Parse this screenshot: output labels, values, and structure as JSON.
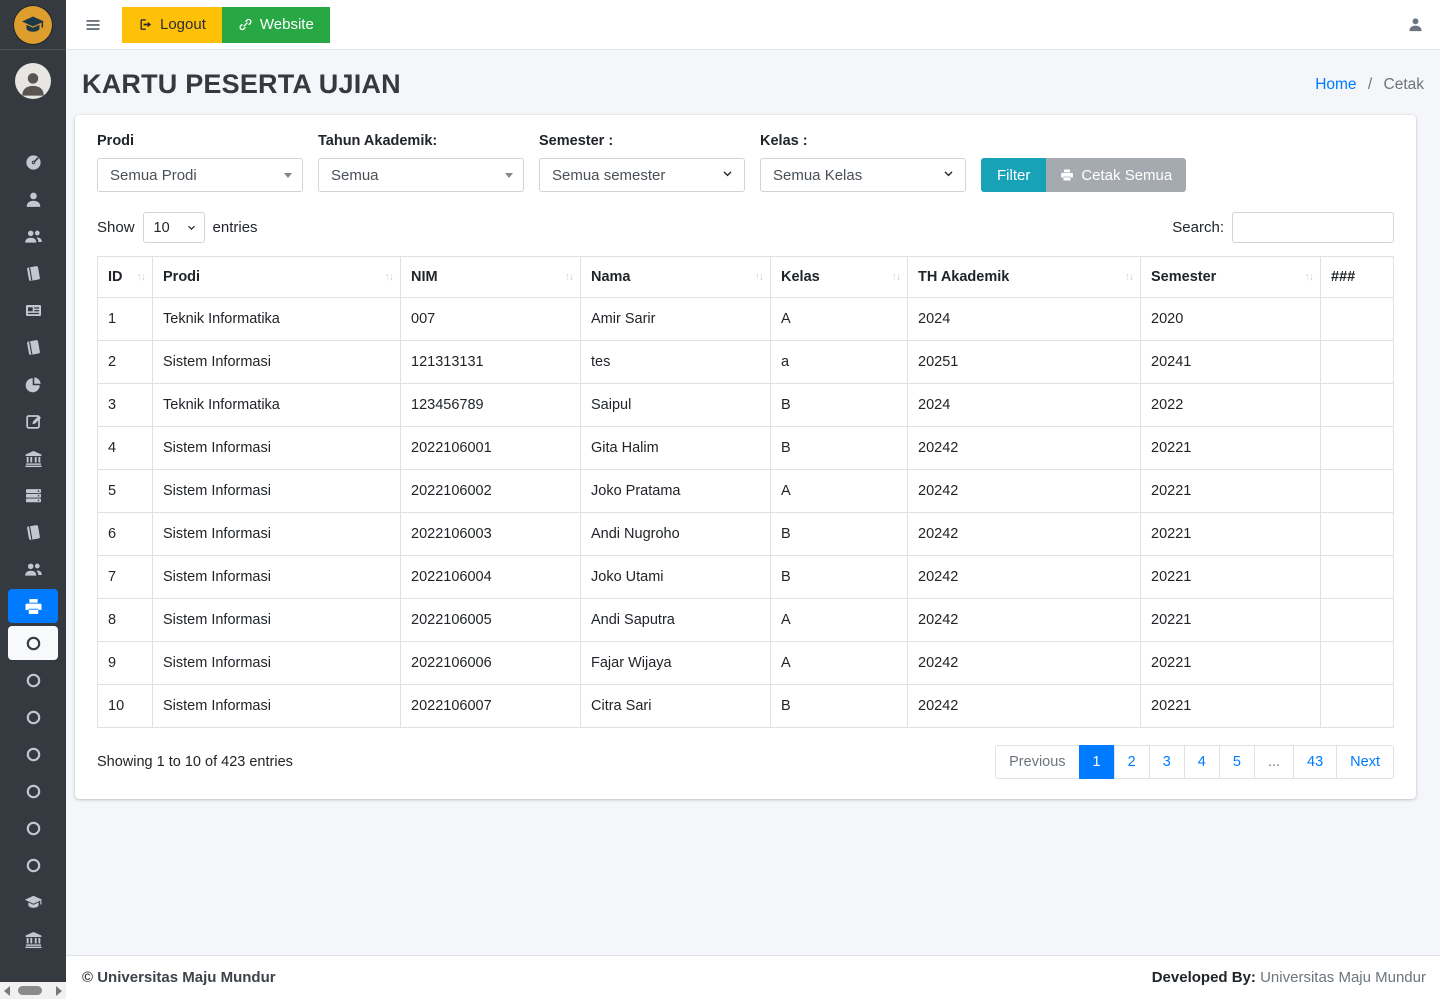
{
  "navbar": {
    "logout_label": "Logout",
    "website_label": "Website"
  },
  "header": {
    "title": "KARTU PESERTA UJIAN",
    "breadcrumb": {
      "home": "Home",
      "separator": "/",
      "current": "Cetak"
    }
  },
  "filters": {
    "groups": [
      {
        "label": "Prodi",
        "value": "Semua Prodi",
        "control": "select2"
      },
      {
        "label": "Tahun Akademik:",
        "value": "Semua",
        "control": "select2"
      },
      {
        "label": "Semester :",
        "value": "Semua semester",
        "control": "native"
      },
      {
        "label": "Kelas :",
        "value": "Semua Kelas",
        "control": "native"
      }
    ],
    "filter_button": "Filter",
    "print_all_button": "Cetak Semua"
  },
  "datatable": {
    "show_label": "Show",
    "page_length": "10",
    "entries_label": "entries",
    "search_label": "Search:",
    "search_value": "",
    "info": "Showing 1 to 10 of 423 entries"
  },
  "table": {
    "columns": [
      {
        "label": "ID",
        "sortable": true
      },
      {
        "label": "Prodi",
        "sortable": true
      },
      {
        "label": "NIM",
        "sortable": true
      },
      {
        "label": "Nama",
        "sortable": true
      },
      {
        "label": "Kelas",
        "sortable": true
      },
      {
        "label": "TH Akademik",
        "sortable": true
      },
      {
        "label": "Semester",
        "sortable": true
      },
      {
        "label": "###",
        "sortable": false
      }
    ],
    "rows": [
      [
        "1",
        "Teknik Informatika",
        "007",
        "Amir Sarir",
        "A",
        "2024",
        "2020",
        ""
      ],
      [
        "2",
        "Sistem Informasi",
        "121313131",
        "tes",
        "a",
        "20251",
        "20241",
        ""
      ],
      [
        "3",
        "Teknik Informatika",
        "123456789",
        "Saipul",
        "B",
        "2024",
        "2022",
        ""
      ],
      [
        "4",
        "Sistem Informasi",
        "2022106001",
        "Gita Halim",
        "B",
        "20242",
        "20221",
        ""
      ],
      [
        "5",
        "Sistem Informasi",
        "2022106002",
        "Joko Pratama",
        "A",
        "20242",
        "20221",
        ""
      ],
      [
        "6",
        "Sistem Informasi",
        "2022106003",
        "Andi Nugroho",
        "B",
        "20242",
        "20221",
        ""
      ],
      [
        "7",
        "Sistem Informasi",
        "2022106004",
        "Joko Utami",
        "B",
        "20242",
        "20221",
        ""
      ],
      [
        "8",
        "Sistem Informasi",
        "2022106005",
        "Andi Saputra",
        "A",
        "20242",
        "20221",
        ""
      ],
      [
        "9",
        "Sistem Informasi",
        "2022106006",
        "Fajar Wijaya",
        "A",
        "20242",
        "20221",
        ""
      ],
      [
        "10",
        "Sistem Informasi",
        "2022106007",
        "Citra Sari",
        "B",
        "20242",
        "20221",
        ""
      ]
    ]
  },
  "pagination": {
    "items": [
      {
        "label": "Previous",
        "state": "disabled"
      },
      {
        "label": "1",
        "state": "active"
      },
      {
        "label": "2"
      },
      {
        "label": "3"
      },
      {
        "label": "4"
      },
      {
        "label": "5"
      },
      {
        "label": "...",
        "state": "disabled"
      },
      {
        "label": "43"
      },
      {
        "label": "Next"
      }
    ]
  },
  "sidebar": {
    "items": [
      {
        "icon": "gauge"
      },
      {
        "icon": "user"
      },
      {
        "icon": "users"
      },
      {
        "icon": "book"
      },
      {
        "icon": "newspaper"
      },
      {
        "icon": "book"
      },
      {
        "icon": "pie-chart"
      },
      {
        "icon": "edit"
      },
      {
        "icon": "bank"
      },
      {
        "icon": "server"
      },
      {
        "icon": "book"
      },
      {
        "icon": "users"
      },
      {
        "icon": "printer",
        "state": "active"
      },
      {
        "icon": "circle",
        "state": "sub-active"
      },
      {
        "icon": "circle"
      },
      {
        "icon": "circle"
      },
      {
        "icon": "circle"
      },
      {
        "icon": "circle"
      },
      {
        "icon": "circle"
      },
      {
        "icon": "circle"
      },
      {
        "icon": "graduation-cap"
      },
      {
        "icon": "bank"
      }
    ]
  },
  "footer": {
    "copyright": "© Universitas Maju Mundur",
    "developed_by_label": "Developed By:",
    "developed_by_value": "Universitas Maju Mundur"
  },
  "colors": {
    "accent": "#007bff",
    "filter_button": "#17a2b8",
    "print_all_button": "#a5aab0",
    "logout_button": "#ffc107",
    "website_button": "#28a745",
    "sidebar_bg": "#343a40",
    "page_bg": "#f4f6f9"
  }
}
